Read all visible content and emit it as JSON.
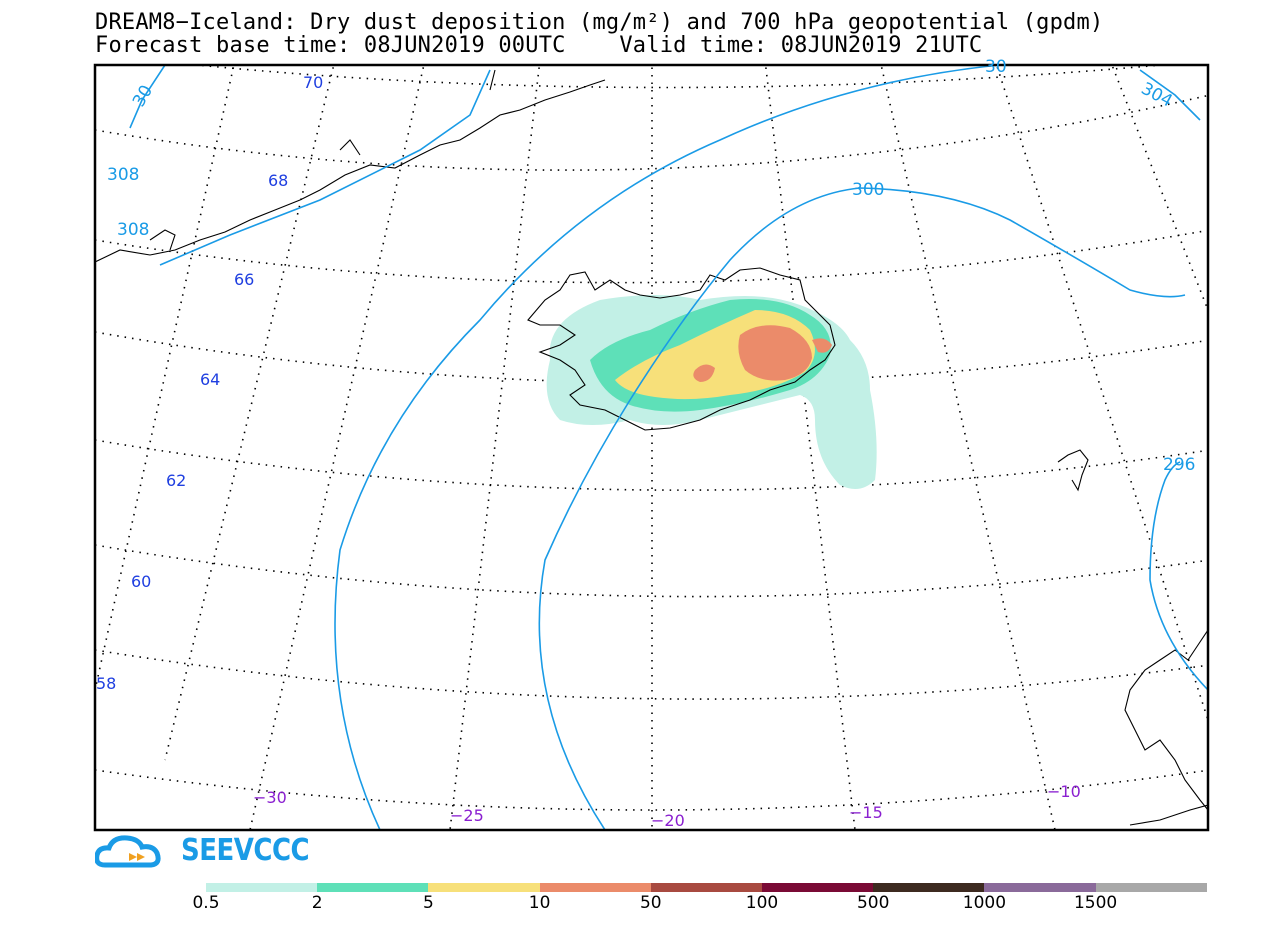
{
  "header": {
    "title_line1": "DREAM8−Iceland: Dry dust deposition (mg/m²) and 700 hPa geopotential (gpdm)",
    "title_line2": "Forecast base time: 08JUN2019 00UTC    Valid time: 08JUN2019 21UTC"
  },
  "map": {
    "latitude_labels": [
      "70",
      "68",
      "66",
      "64",
      "62",
      "60",
      "58"
    ],
    "longitude_labels": [
      "−30",
      "−25",
      "−20",
      "−15",
      "−10"
    ],
    "contour_labels": [
      "308",
      "308",
      "304",
      "300",
      "296",
      "30",
      "30"
    ]
  },
  "brand": {
    "name": "SEEVCCC"
  },
  "legend": {
    "labels": [
      "0.5",
      "2",
      "5",
      "10",
      "50",
      "100",
      "500",
      "1000",
      "1500"
    ],
    "colors": [
      "#c2f0e6",
      "#5ee0b8",
      "#f7e07a",
      "#eb8b6a",
      "#a84a40",
      "#7a0a35",
      "#3d2a20",
      "#8a6a9a",
      "#a8a8a8"
    ]
  },
  "colors": {
    "contour": "#1a9be6",
    "latitude_text": "#1f3fe0",
    "longitude_text": "#8a1fd0"
  }
}
